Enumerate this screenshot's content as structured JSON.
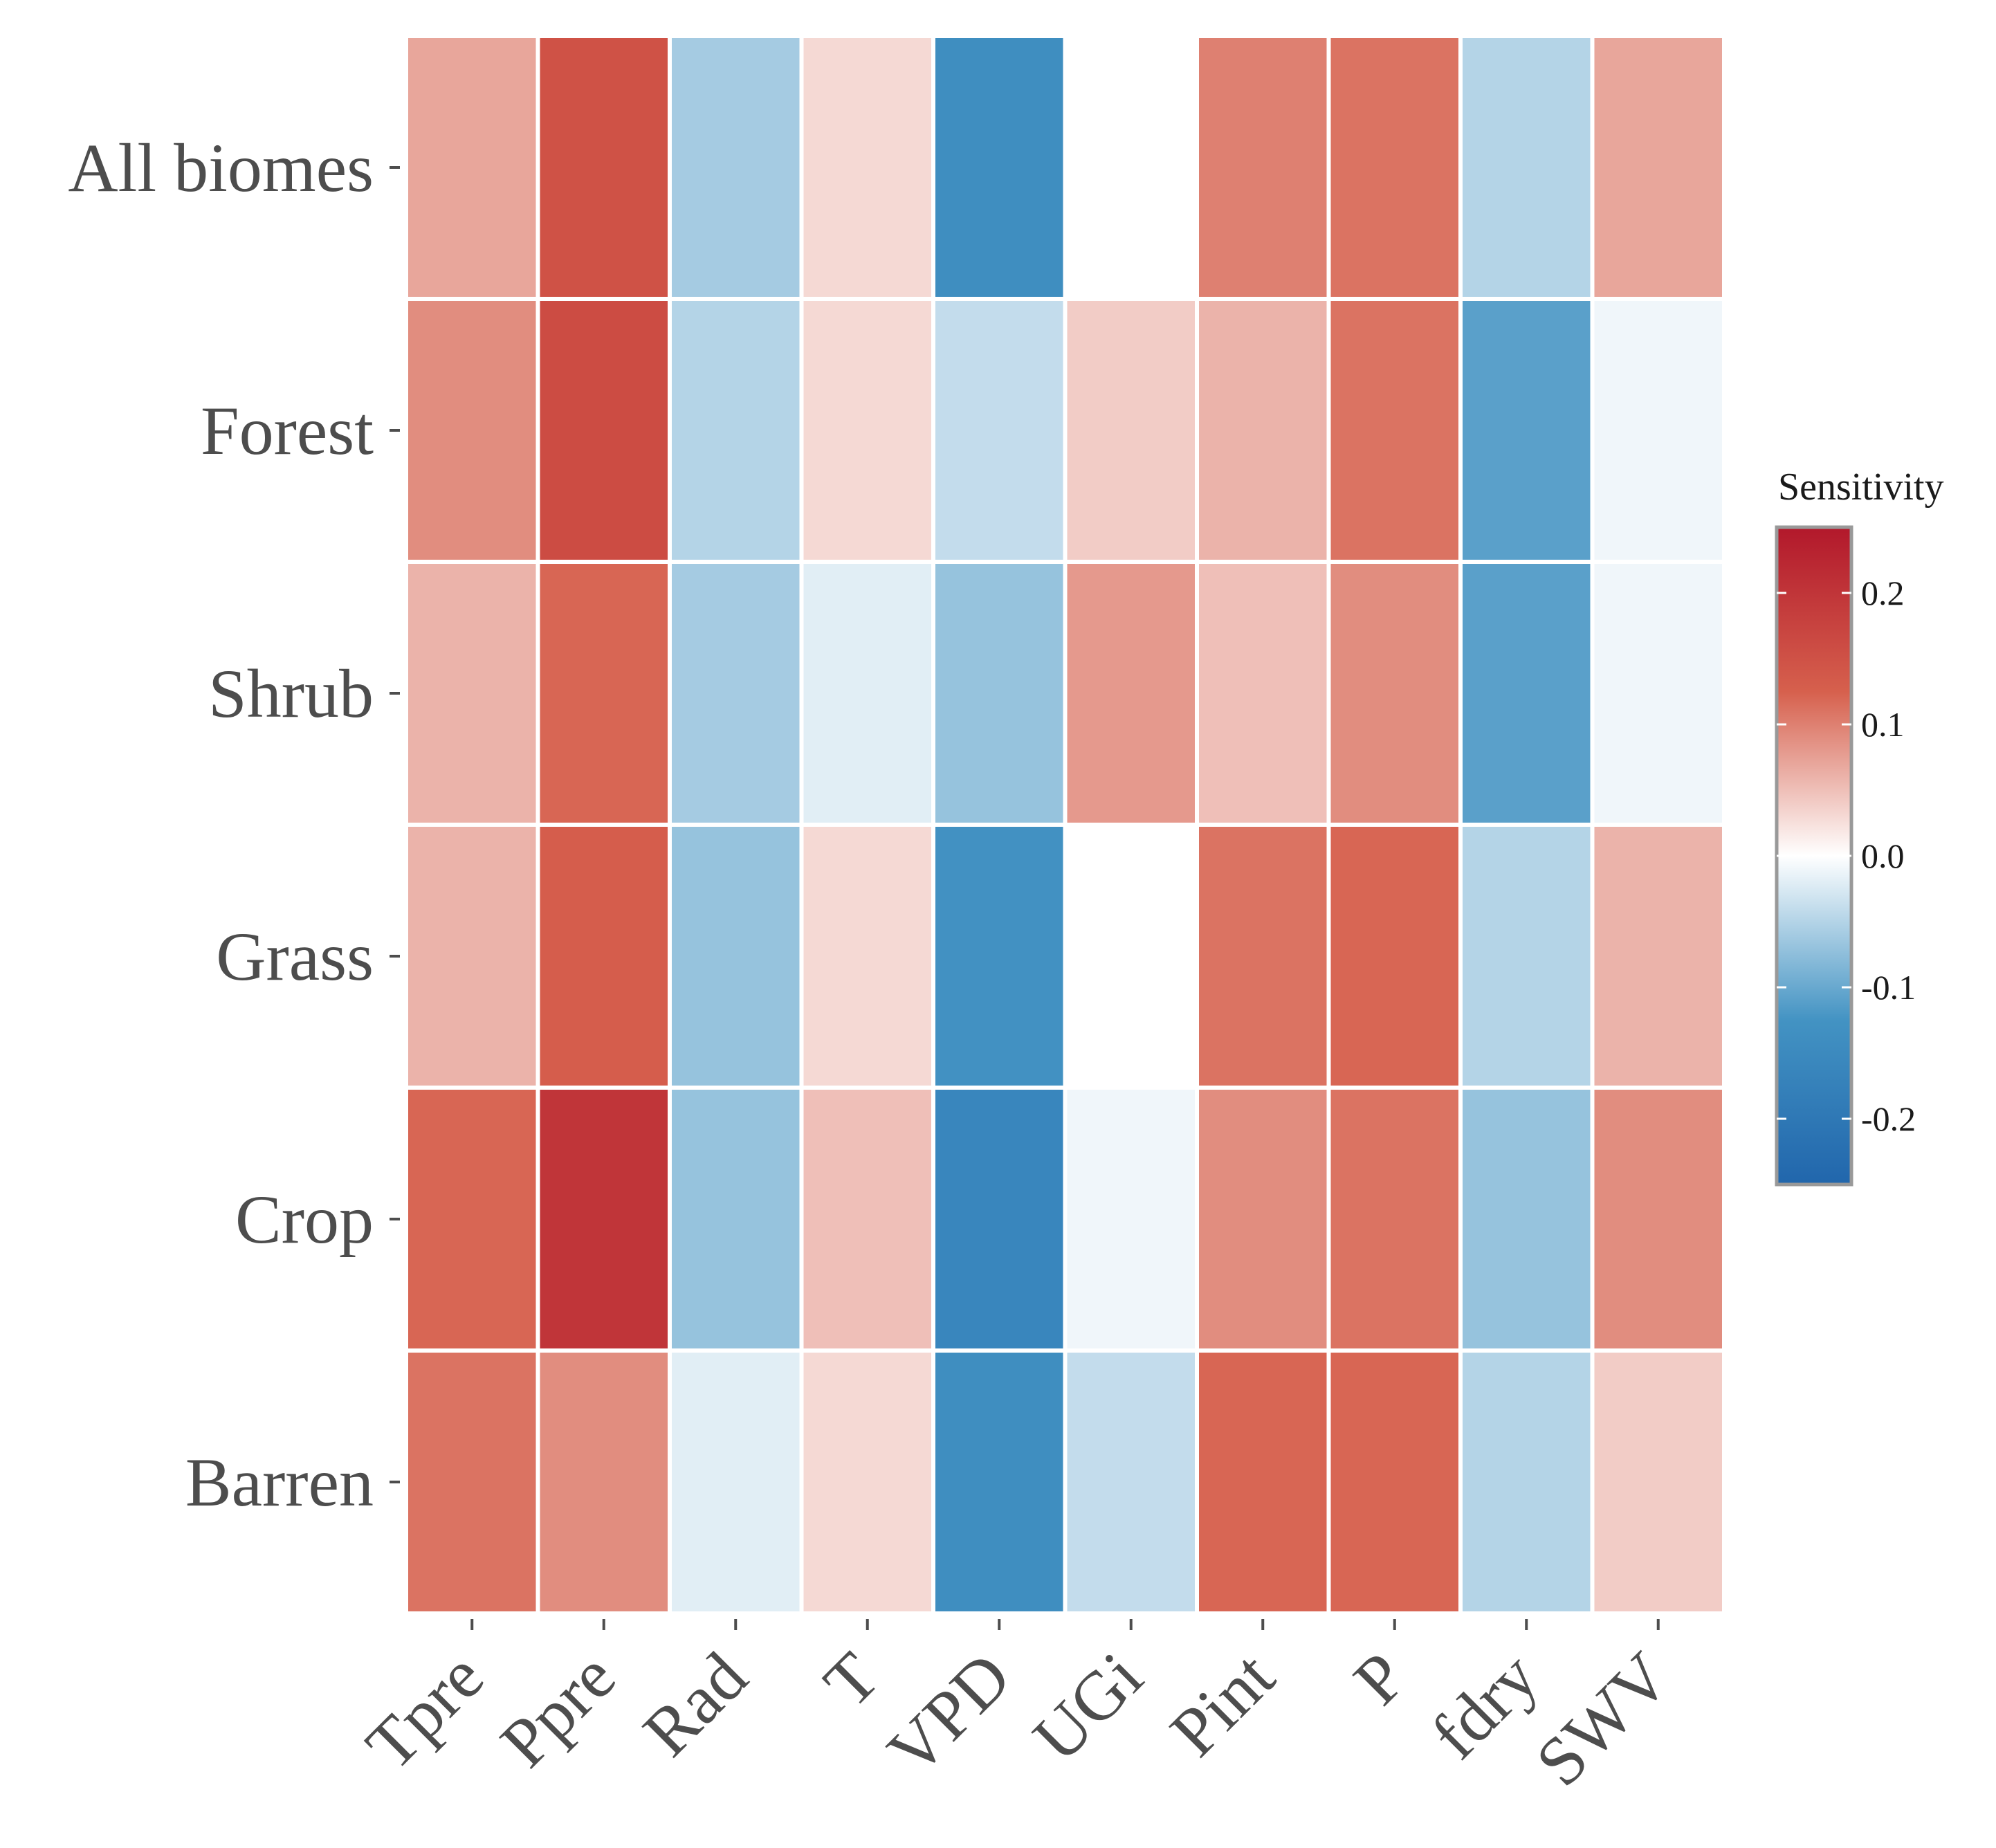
{
  "chart_data": {
    "type": "heatmap",
    "title": "",
    "xlabel": "",
    "ylabel": "",
    "rows": [
      "All biomes",
      "Forest",
      "Shrub",
      "Grass",
      "Crop",
      "Barren"
    ],
    "columns": [
      "Tpre",
      "Ppre",
      "Rad",
      "T",
      "VPD",
      "UGi",
      "Pint",
      "P",
      "fdry",
      "SWV"
    ],
    "values": [
      [
        0.07,
        0.15,
        -0.06,
        0.03,
        -0.14,
        0.0,
        0.1,
        0.11,
        -0.05,
        0.07
      ],
      [
        0.09,
        0.16,
        -0.05,
        0.03,
        -0.04,
        0.04,
        0.06,
        0.11,
        -0.11,
        -0.01
      ],
      [
        0.06,
        0.12,
        -0.06,
        -0.02,
        -0.07,
        0.08,
        0.05,
        0.09,
        -0.11,
        -0.01
      ],
      [
        0.06,
        0.13,
        -0.07,
        0.03,
        -0.13,
        0.0,
        0.11,
        0.12,
        -0.05,
        0.06
      ],
      [
        0.12,
        0.2,
        -0.07,
        0.05,
        -0.16,
        -0.01,
        0.09,
        0.11,
        -0.07,
        0.09
      ],
      [
        0.11,
        0.09,
        -0.02,
        0.03,
        -0.14,
        -0.04,
        0.12,
        0.12,
        -0.05,
        0.04
      ]
    ],
    "legend": {
      "title": "Sensitivity",
      "ticks": [
        0.2,
        0.1,
        0.0,
        -0.1,
        -0.2
      ],
      "tick_labels": [
        "0.2",
        "0.1",
        "0.0",
        "-0.1",
        "-0.2"
      ],
      "range": [
        -0.25,
        0.25
      ],
      "position": "right",
      "colors": {
        "low": "#2166ac",
        "mid": "#ffffff",
        "high": "#b2182b"
      }
    }
  }
}
